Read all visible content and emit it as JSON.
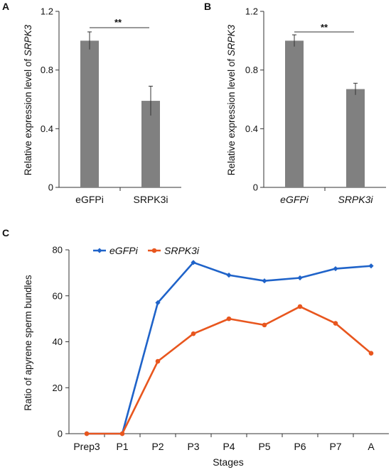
{
  "chart_data": [
    {
      "panel": "A",
      "type": "bar",
      "categories": [
        "eGFPi",
        "SRPK3i"
      ],
      "categories_italic": false,
      "values": [
        1.0,
        0.59
      ],
      "errors": [
        0.06,
        0.1
      ],
      "ylabel_prefix": "Relative expression level of ",
      "ylabel_gene": "SRPK3",
      "ylim": [
        0,
        1.2
      ],
      "yticks": [
        "0",
        "0.4",
        "0.8",
        "1.2"
      ],
      "yticks_values": [
        0,
        0.4,
        0.8,
        1.2
      ],
      "significance": "**",
      "bar_color": "#808080"
    },
    {
      "panel": "B",
      "type": "bar",
      "categories": [
        "eGFPi",
        "SRPK3i"
      ],
      "categories_italic": true,
      "values": [
        1.0,
        0.67
      ],
      "errors": [
        0.04,
        0.04
      ],
      "ylabel_prefix": "Relative expression level of ",
      "ylabel_gene": "SRPK3",
      "ylim": [
        0,
        1.2
      ],
      "yticks": [
        "0",
        "0.4",
        "0.8",
        "1.2"
      ],
      "yticks_values": [
        0,
        0.4,
        0.8,
        1.2
      ],
      "significance": "**",
      "bar_color": "#808080"
    },
    {
      "panel": "C",
      "type": "line",
      "categories": [
        "Prep3",
        "P1",
        "P2",
        "P3",
        "P4",
        "P5",
        "P6",
        "P7",
        "A"
      ],
      "series": [
        {
          "name": "eGFPi",
          "color": "#1f63c9",
          "marker": "diamond",
          "values": [
            0,
            0,
            57,
            74.5,
            69,
            66.5,
            67.8,
            71.8,
            73
          ]
        },
        {
          "name": "SRPK3i",
          "color": "#e8561e",
          "marker": "circle",
          "values": [
            0,
            0,
            31.5,
            43.5,
            50,
            47.3,
            55.3,
            48,
            35
          ]
        }
      ],
      "xlabel": "Stages",
      "ylabel": "Ratio of apyrene sperm bundles",
      "ylim": [
        0,
        80
      ],
      "yticks": [
        "0",
        "20",
        "40",
        "60",
        "80"
      ],
      "yticks_values": [
        0,
        20,
        40,
        60,
        80
      ],
      "legend_position": "top-left"
    }
  ]
}
